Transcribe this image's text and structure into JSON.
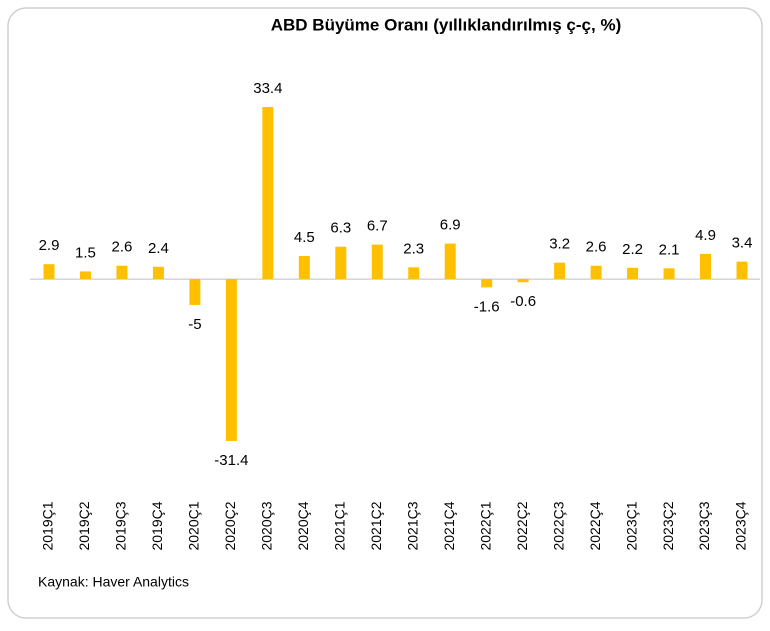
{
  "chart_data": {
    "type": "bar",
    "title": "ABD Büyüme Oranı (yıllıklandırılmış ç-ç, %)",
    "categories": [
      "2019Ç1",
      "2019Ç2",
      "2019Ç3",
      "2019Ç4",
      "2020Ç1",
      "2020Ç2",
      "2020Ç3",
      "2020Ç4",
      "2021Ç1",
      "2021Ç2",
      "2021Ç3",
      "2021Ç4",
      "2022Ç1",
      "2022Ç2",
      "2022Ç3",
      "2022Ç4",
      "2023Ç1",
      "2023Ç2",
      "2023Ç3",
      "2023Ç4"
    ],
    "values": [
      2.9,
      1.5,
      2.6,
      2.4,
      -5,
      -31.4,
      33.4,
      4.5,
      6.3,
      6.7,
      2.3,
      6.9,
      -1.6,
      -0.6,
      3.2,
      2.6,
      2.2,
      2.1,
      4.9,
      3.4
    ],
    "color": "#ffc000",
    "source": "Kaynak: Haver Analytics"
  }
}
